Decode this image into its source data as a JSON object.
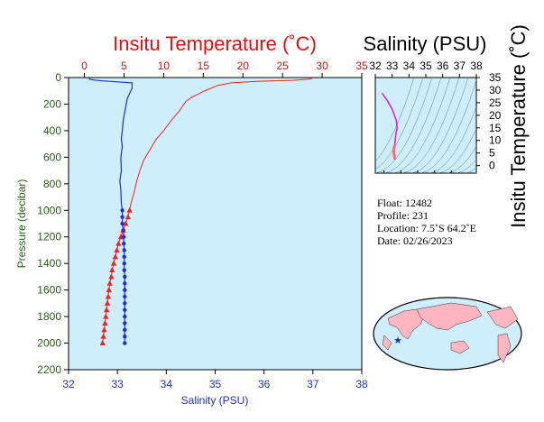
{
  "chart_data": [
    {
      "type": "line",
      "title": "Insitu Temperature (˚C)",
      "xlabel_top": "Insitu Temperature (˚C)",
      "xlabel_bottom": "Salinity (PSU)",
      "ylabel": "Pressure (decibar)",
      "ylim": [
        2200,
        0
      ],
      "temp_xlim": [
        -2,
        35
      ],
      "sal_xlim": [
        32,
        38
      ],
      "yticks": [
        0,
        200,
        400,
        600,
        800,
        1000,
        1200,
        1400,
        1600,
        1800,
        2000,
        2200
      ],
      "temp_ticks": [
        0,
        5,
        10,
        15,
        20,
        25,
        30,
        35
      ],
      "sal_ticks": [
        32,
        33,
        34,
        35,
        36,
        37,
        38
      ],
      "grid": false,
      "series": [
        {
          "name": "Temperature",
          "color": "#ee2222",
          "points": [
            [
              28.8,
              0
            ],
            [
              28.6,
              10
            ],
            [
              26.5,
              20
            ],
            [
              22.0,
              28
            ],
            [
              18.5,
              40
            ],
            [
              16.8,
              60
            ],
            [
              15.2,
              100
            ],
            [
              13.5,
              150
            ],
            [
              12.8,
              180
            ],
            [
              12.0,
              250
            ],
            [
              11.0,
              320
            ],
            [
              10.0,
              400
            ],
            [
              9.0,
              470
            ],
            [
              8.2,
              550
            ],
            [
              7.5,
              620
            ],
            [
              7.0,
              700
            ],
            [
              6.6,
              780
            ],
            [
              6.3,
              860
            ],
            [
              5.9,
              940
            ],
            [
              5.7,
              1000
            ],
            [
              5.5,
              1050
            ],
            [
              5.2,
              1100
            ],
            [
              4.9,
              1150
            ],
            [
              4.6,
              1200
            ],
            [
              4.3,
              1250
            ],
            [
              4.1,
              1300
            ],
            [
              3.9,
              1350
            ],
            [
              3.7,
              1400
            ],
            [
              3.5,
              1450
            ],
            [
              3.4,
              1500
            ],
            [
              3.2,
              1550
            ],
            [
              3.1,
              1600
            ],
            [
              3.0,
              1650
            ],
            [
              2.9,
              1700
            ],
            [
              2.8,
              1750
            ],
            [
              2.7,
              1800
            ],
            [
              2.6,
              1850
            ],
            [
              2.5,
              1900
            ],
            [
              2.4,
              1950
            ],
            [
              2.3,
              2000
            ]
          ],
          "markers_from": 1000
        },
        {
          "name": "Salinity",
          "color": "#1a2fd6",
          "points": [
            [
              32.4,
              0
            ],
            [
              32.45,
              15
            ],
            [
              32.55,
              20
            ],
            [
              32.7,
              25
            ],
            [
              32.9,
              30
            ],
            [
              33.3,
              40
            ],
            [
              33.3,
              80
            ],
            [
              33.25,
              120
            ],
            [
              33.2,
              160
            ],
            [
              33.18,
              200
            ],
            [
              33.15,
              260
            ],
            [
              33.12,
              320
            ],
            [
              33.1,
              400
            ],
            [
              33.08,
              460
            ],
            [
              33.1,
              520
            ],
            [
              33.07,
              600
            ],
            [
              33.08,
              700
            ],
            [
              33.05,
              780
            ],
            [
              33.07,
              850
            ],
            [
              33.08,
              950
            ],
            [
              33.1,
              1000
            ],
            [
              33.1,
              1050
            ],
            [
              33.1,
              1100
            ],
            [
              33.12,
              1150
            ],
            [
              33.13,
              1200
            ],
            [
              33.13,
              1250
            ],
            [
              33.14,
              1300
            ],
            [
              33.14,
              1350
            ],
            [
              33.14,
              1400
            ],
            [
              33.14,
              1450
            ],
            [
              33.15,
              1500
            ],
            [
              33.15,
              1550
            ],
            [
              33.15,
              1600
            ],
            [
              33.15,
              1650
            ],
            [
              33.15,
              1700
            ],
            [
              33.15,
              1750
            ],
            [
              33.15,
              1800
            ],
            [
              33.15,
              1850
            ],
            [
              33.15,
              1900
            ],
            [
              33.15,
              1950
            ],
            [
              33.15,
              2000
            ]
          ],
          "markers_from": 1000
        }
      ]
    },
    {
      "type": "scatter",
      "title": "Salinity (PSU)",
      "ylabel": "Insitu Temperature (˚C)",
      "xlim": [
        32,
        38
      ],
      "ylim": [
        -3,
        35
      ],
      "xticks": [
        32,
        33,
        34,
        35,
        36,
        37,
        38
      ],
      "yticks": [
        0,
        5,
        10,
        15,
        20,
        25,
        30,
        35
      ],
      "series": [
        {
          "name": "T-S",
          "points": [
            [
              32.4,
              28.8
            ],
            [
              32.7,
              26.0
            ],
            [
              33.0,
              22.5
            ],
            [
              33.25,
              18.0
            ],
            [
              33.3,
              15.0
            ],
            [
              33.22,
              12.5
            ],
            [
              33.18,
              10.0
            ],
            [
              33.15,
              8.0
            ],
            [
              33.1,
              6.5
            ],
            [
              33.1,
              5.5
            ],
            [
              33.12,
              4.5
            ],
            [
              33.14,
              3.5
            ],
            [
              33.15,
              2.8
            ],
            [
              33.15,
              2.3
            ]
          ]
        }
      ]
    }
  ],
  "info": {
    "float_label": "Float:",
    "float_value": "12482",
    "profile_label": "Profile:",
    "profile_value": "231",
    "location_label": "Location:",
    "location_value": "7.5˚S  64.2˚E",
    "date_label": "Date:",
    "date_value": "02/26/2023"
  },
  "map": {
    "marker_lon": 64.2,
    "marker_lat": -7.5,
    "marker_symbol": "★"
  },
  "colors": {
    "plot_bg": "#cdeefa",
    "temperature": "#ee2222",
    "salinity": "#1a2fd6",
    "axis_text_green": "#2a5a1a",
    "land": "#ffb6c1"
  }
}
